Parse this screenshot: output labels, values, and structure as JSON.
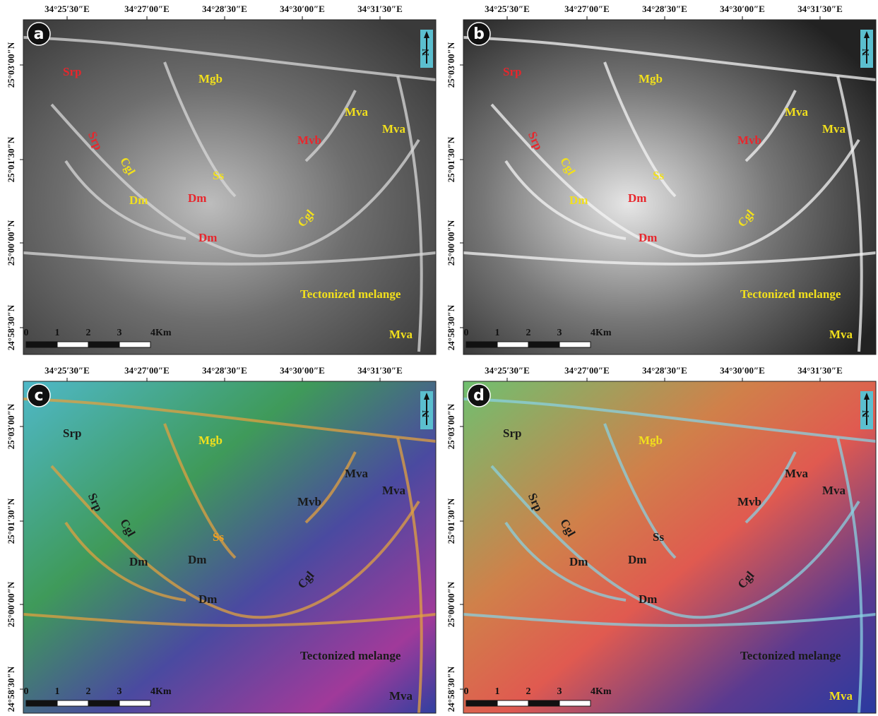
{
  "panels": [
    {
      "letter": "a",
      "north": "N",
      "top_ticks": [
        "34°25′30″E",
        "34°27′00″E",
        "34°28′30″E",
        "34°30′00″E",
        "34°31′30″E"
      ],
      "left_ticks": [
        "25°03′00″N",
        "25°01′30″N",
        "25°00′00″N",
        "24°58′30″N"
      ],
      "scale": [
        "0",
        "1",
        "2",
        "3",
        "4Km"
      ],
      "labels": [
        {
          "text": "Srp",
          "color": "#e8262c"
        },
        {
          "text": "Srp",
          "color": "#e8262c"
        },
        {
          "text": "Cgl",
          "color": "#f2e01c"
        },
        {
          "text": "Dm",
          "color": "#f2e01c"
        },
        {
          "text": "Ss",
          "color": "#f2e01c"
        },
        {
          "text": "Dm",
          "color": "#e8262c"
        },
        {
          "text": "Dm",
          "color": "#e8262c"
        },
        {
          "text": "Mgb",
          "color": "#f2e01c"
        },
        {
          "text": "Mva",
          "color": "#f2e01c"
        },
        {
          "text": "Mva",
          "color": "#f2e01c"
        },
        {
          "text": "Mvb",
          "color": "#e8262c"
        },
        {
          "text": "Cgl",
          "color": "#f2e01c"
        },
        {
          "text": "Tectonized melange",
          "color": "#f2e01c"
        },
        {
          "text": "Mva",
          "color": "#f2e01c"
        }
      ]
    },
    {
      "letter": "b",
      "north": "N",
      "top_ticks": [
        "34°25′30″E",
        "34°27′00″E",
        "34°28′30″E",
        "34°30′00″E",
        "34°31′30″E"
      ],
      "left_ticks": [
        "25°03′00″N",
        "25°01′30″N",
        "25°00′00″N",
        "24°58′30″N"
      ],
      "scale": [
        "0",
        "1",
        "2",
        "3",
        "4Km"
      ],
      "labels": [
        {
          "text": "Srp",
          "color": "#e8262c"
        },
        {
          "text": "Srp",
          "color": "#e8262c"
        },
        {
          "text": "Cgl",
          "color": "#f2e01c"
        },
        {
          "text": "Dm",
          "color": "#f2e01c"
        },
        {
          "text": "Ss",
          "color": "#f2e01c"
        },
        {
          "text": "Dm",
          "color": "#e8262c"
        },
        {
          "text": "Dm",
          "color": "#e8262c"
        },
        {
          "text": "Mgb",
          "color": "#f2e01c"
        },
        {
          "text": "Mva",
          "color": "#f2e01c"
        },
        {
          "text": "Mva",
          "color": "#f2e01c"
        },
        {
          "text": "Mvb",
          "color": "#e8262c"
        },
        {
          "text": "Cgl",
          "color": "#f2e01c"
        },
        {
          "text": "Tectonized melange",
          "color": "#f2e01c"
        },
        {
          "text": "Mva",
          "color": "#f2e01c"
        }
      ]
    },
    {
      "letter": "c",
      "north": "N",
      "top_ticks": [
        "34°25′30″E",
        "34°27′00″E",
        "34°28′30″E",
        "34°30′00″E",
        "34°31′30″E"
      ],
      "left_ticks": [
        "25°03′00″N",
        "25°01′30″N",
        "25°00′00″N",
        "24°58′30″N"
      ],
      "scale": [
        "0",
        "1",
        "2",
        "3",
        "4Km"
      ],
      "labels": [
        {
          "text": "Srp",
          "color": "#1a1a1a"
        },
        {
          "text": "Srp",
          "color": "#1a1a1a"
        },
        {
          "text": "Cgl",
          "color": "#1a1a1a"
        },
        {
          "text": "Dm",
          "color": "#1a1a1a"
        },
        {
          "text": "Ss",
          "color": "#f0a020"
        },
        {
          "text": "Dm",
          "color": "#1a1a1a"
        },
        {
          "text": "Dm",
          "color": "#1a1a1a"
        },
        {
          "text": "Mgb",
          "color": "#f2e01c"
        },
        {
          "text": "Mva",
          "color": "#1a1a1a"
        },
        {
          "text": "Mva",
          "color": "#1a1a1a"
        },
        {
          "text": "Mvb",
          "color": "#1a1a1a"
        },
        {
          "text": "Cgl",
          "color": "#1a1a1a"
        },
        {
          "text": "Tectonized melange",
          "color": "#1a1a1a"
        },
        {
          "text": "Mva",
          "color": "#1a1a1a"
        }
      ]
    },
    {
      "letter": "d",
      "north": "N",
      "top_ticks": [
        "34°25′30″E",
        "34°27′00″E",
        "34°28′30″E",
        "34°30′00″E",
        "34°31′30″E"
      ],
      "left_ticks": [
        "25°03′00″N",
        "25°01′30″N",
        "25°00′00″N",
        "24°58′30″N"
      ],
      "scale": [
        "0",
        "1",
        "2",
        "3",
        "4Km"
      ],
      "labels": [
        {
          "text": "Srp",
          "color": "#1a1a1a"
        },
        {
          "text": "Srp",
          "color": "#1a1a1a"
        },
        {
          "text": "Cgl",
          "color": "#1a1a1a"
        },
        {
          "text": "Dm",
          "color": "#1a1a1a"
        },
        {
          "text": "Ss",
          "color": "#1a1a1a"
        },
        {
          "text": "Dm",
          "color": "#1a1a1a"
        },
        {
          "text": "Dm",
          "color": "#1a1a1a"
        },
        {
          "text": "Mgb",
          "color": "#f2e01c"
        },
        {
          "text": "Mva",
          "color": "#1a1a1a"
        },
        {
          "text": "Mva",
          "color": "#1a1a1a"
        },
        {
          "text": "Mvb",
          "color": "#1a1a1a"
        },
        {
          "text": "Cgl",
          "color": "#1a1a1a"
        },
        {
          "text": "Tectonized melange",
          "color": "#1a1a1a"
        },
        {
          "text": "Mva",
          "color": "#f2e01c"
        }
      ]
    }
  ]
}
